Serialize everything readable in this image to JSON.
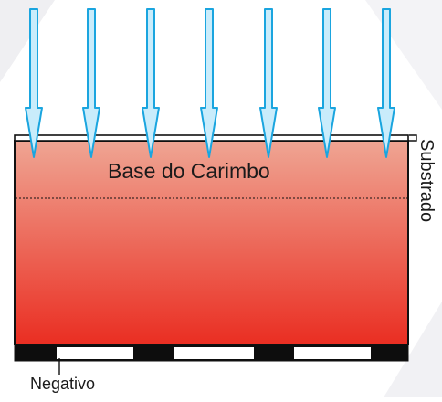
{
  "labels": {
    "base": "Base do Carimbo",
    "substrate": "Substrado",
    "negative": "Negativo"
  },
  "colors": {
    "arrow_fill": "#c9ecfb",
    "arrow_stroke": "#1aa5df",
    "gradient_top": "#efa593",
    "gradient_bottom": "#ea2e22",
    "outline": "#111111",
    "background_accent": "#efeff2"
  }
}
